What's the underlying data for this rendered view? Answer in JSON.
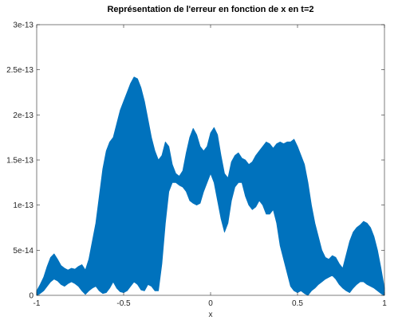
{
  "chart_data": {
    "type": "area",
    "title": "Représentation de l'erreur en fonction de x en t=2",
    "xlabel": "x",
    "ylabel": "",
    "xlim": [
      -1,
      1
    ],
    "ylim": [
      0,
      3e-13
    ],
    "xticks": [
      -1,
      -0.5,
      0,
      0.5,
      1
    ],
    "xtick_labels": [
      "-1",
      "-0.5",
      "0",
      "0.5",
      "1"
    ],
    "yticks": [
      0,
      5e-14,
      1e-13,
      1.5e-13,
      2e-13,
      2.5e-13,
      3e-13
    ],
    "ytick_labels": [
      "0",
      "5e-14",
      "1e-13",
      "1.5e-13",
      "2e-13",
      "2.5e-13",
      "3e-13"
    ],
    "grid": false,
    "legend": "none",
    "series": [
      {
        "color": "#0072bd",
        "style": "dense oscillating band (upper and lower envelope)",
        "x": [
          -1,
          -0.98,
          -0.96,
          -0.94,
          -0.92,
          -0.9,
          -0.88,
          -0.86,
          -0.84,
          -0.82,
          -0.8,
          -0.78,
          -0.76,
          -0.74,
          -0.72,
          -0.7,
          -0.68,
          -0.66,
          -0.64,
          -0.62,
          -0.6,
          -0.58,
          -0.56,
          -0.54,
          -0.52,
          -0.5,
          -0.48,
          -0.46,
          -0.44,
          -0.42,
          -0.4,
          -0.38,
          -0.36,
          -0.34,
          -0.32,
          -0.3,
          -0.28,
          -0.26,
          -0.24,
          -0.22,
          -0.2,
          -0.18,
          -0.16,
          -0.14,
          -0.12,
          -0.1,
          -0.08,
          -0.06,
          -0.04,
          -0.02,
          0,
          0.02,
          0.04,
          0.06,
          0.08,
          0.1,
          0.12,
          0.14,
          0.16,
          0.18,
          0.2,
          0.22,
          0.24,
          0.26,
          0.28,
          0.3,
          0.32,
          0.34,
          0.36,
          0.38,
          0.4,
          0.42,
          0.44,
          0.46,
          0.48,
          0.5,
          0.52,
          0.54,
          0.56,
          0.58,
          0.6,
          0.62,
          0.64,
          0.66,
          0.68,
          0.7,
          0.72,
          0.74,
          0.76,
          0.78,
          0.8,
          0.82,
          0.84,
          0.86,
          0.88,
          0.9,
          0.92,
          0.94,
          0.96,
          0.98,
          1
        ],
        "upper": [
          5e-15,
          1.2e-14,
          2e-14,
          3.2e-14,
          4.2e-14,
          4.6e-14,
          4e-14,
          3.3e-14,
          3e-14,
          2.8e-14,
          3e-14,
          2.9e-14,
          3.2e-14,
          3.4e-14,
          2.8e-14,
          4e-14,
          6e-14,
          8e-14,
          1.1e-13,
          1.4e-13,
          1.6e-13,
          1.7e-13,
          1.75e-13,
          1.9e-13,
          2.05e-13,
          2.15e-13,
          2.25e-13,
          2.35e-13,
          2.42e-13,
          2.4e-13,
          2.3e-13,
          2.15e-13,
          1.95e-13,
          1.75e-13,
          1.6e-13,
          1.5e-13,
          1.55e-13,
          1.7e-13,
          1.65e-13,
          1.45e-13,
          1.35e-13,
          1.32e-13,
          1.38e-13,
          1.58e-13,
          1.75e-13,
          1.85e-13,
          1.78e-13,
          1.65e-13,
          1.6e-13,
          1.65e-13,
          1.8e-13,
          1.86e-13,
          1.78e-13,
          1.55e-13,
          1.35e-13,
          1.3e-13,
          1.48e-13,
          1.55e-13,
          1.58e-13,
          1.52e-13,
          1.5e-13,
          1.45e-13,
          1.48e-13,
          1.55e-13,
          1.6e-13,
          1.65e-13,
          1.7e-13,
          1.68e-13,
          1.63e-13,
          1.68e-13,
          1.7e-13,
          1.68e-13,
          1.7e-13,
          1.7e-13,
          1.73e-13,
          1.65e-13,
          1.55e-13,
          1.45e-13,
          1.25e-13,
          1e-13,
          8e-14,
          6.5e-14,
          5e-14,
          4.2e-14,
          4e-14,
          4.4e-14,
          4.2e-14,
          3.5e-14,
          3e-14,
          4.5e-14,
          6e-14,
          7e-14,
          7.5e-14,
          7.8e-14,
          8.2e-14,
          8e-14,
          7.5e-14,
          6.5e-14,
          5e-14,
          3e-14,
          8e-15
        ],
        "lower": [
          0,
          2e-15,
          5e-15,
          1e-14,
          1.5e-14,
          1.8e-14,
          1.6e-14,
          1.2e-14,
          1e-14,
          1.3e-14,
          1.5e-14,
          1.3e-14,
          1e-14,
          5e-15,
          1e-15,
          5e-15,
          8e-15,
          1e-14,
          5e-15,
          2e-15,
          3e-15,
          8e-15,
          1.5e-14,
          8e-15,
          4e-15,
          3e-15,
          5e-15,
          1e-14,
          1.5e-14,
          1.2e-14,
          6e-15,
          5e-15,
          1.2e-14,
          1e-14,
          5e-15,
          5e-15,
          3.5e-14,
          8e-14,
          1.15e-13,
          1.25e-13,
          1.25e-13,
          1.22e-13,
          1.2e-13,
          1.15e-13,
          1.05e-13,
          1.02e-13,
          1e-13,
          1.02e-13,
          1.15e-13,
          1.25e-13,
          1.35e-13,
          1.25e-13,
          1.05e-13,
          8.5e-14,
          7e-14,
          8e-14,
          1.05e-13,
          1.2e-13,
          1.25e-13,
          1.25e-13,
          1.1e-13,
          1e-13,
          9.5e-14,
          9.8e-14,
          1.05e-13,
          1e-13,
          9e-14,
          9e-14,
          9.5e-14,
          8e-14,
          5.5e-14,
          4e-14,
          2.5e-14,
          1e-14,
          5e-15,
          3e-15,
          5e-15,
          2e-15,
          0.0,
          5e-15,
          8e-15,
          1.2e-14,
          1.5e-14,
          1.8e-14,
          2e-14,
          2.2e-14,
          1.8e-14,
          1.2e-14,
          8e-15,
          5e-15,
          3e-15,
          8e-15,
          1.2e-14,
          1.5e-14,
          1.5e-14,
          1.2e-14,
          1e-14,
          8e-15,
          5e-15,
          2e-15,
          0
        ]
      }
    ]
  }
}
